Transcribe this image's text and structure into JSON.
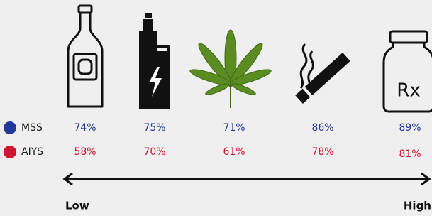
{
  "legend": [
    {
      "label": "MSS",
      "color": "#23399a"
    },
    {
      "label": "AIYS",
      "color": "#cf1631"
    }
  ],
  "rows": [
    [
      "74%",
      "75%",
      "71%",
      "86%",
      "89%"
    ],
    [
      "58%",
      "70%",
      "61%",
      "78%",
      "81%"
    ]
  ],
  "icon_text": "Rx",
  "scale": {
    "low": "Low",
    "high": "High"
  }
}
